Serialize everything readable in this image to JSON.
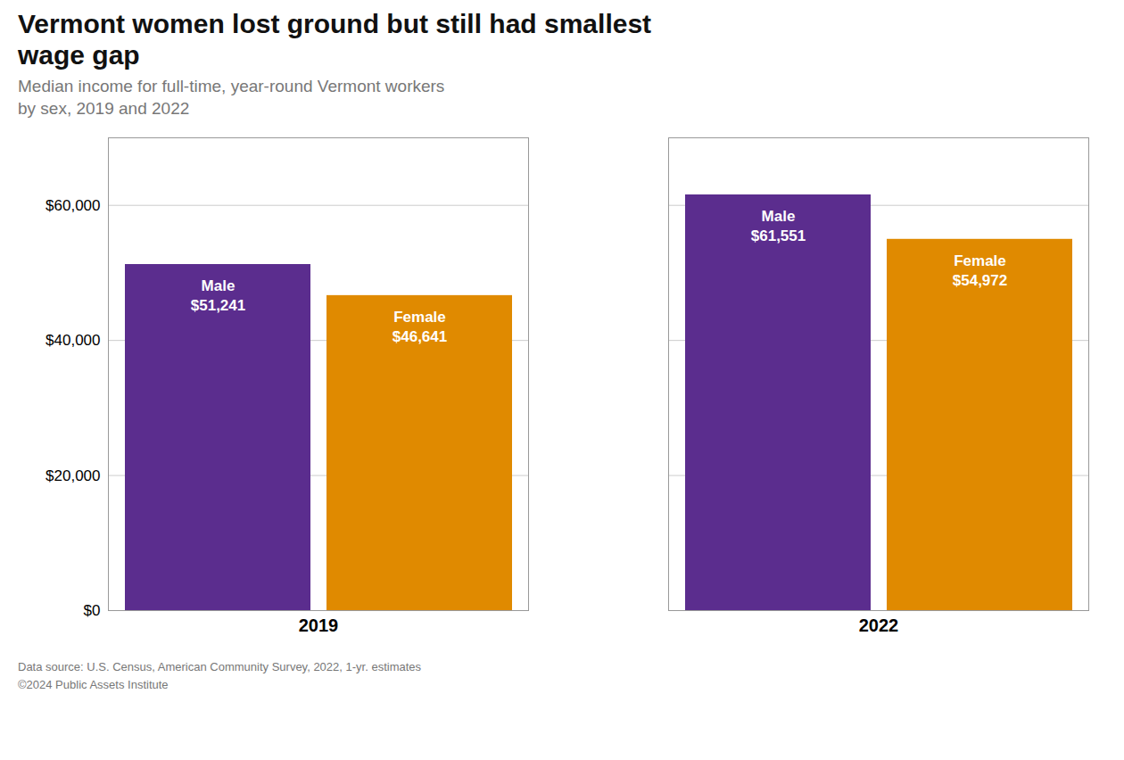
{
  "chart_data": {
    "type": "bar",
    "title": "Vermont women lost ground but still had smallest\nwage gap",
    "subtitle": "Median income for full-time, year-round Vermont workers\nby sex, 2019 and 2022",
    "caption": "Data source: U.S. Census, American Community Survey, 2022, 1-yr. estimates\n©2024 Public Assets Institute",
    "categories": [
      "2019",
      "2022"
    ],
    "series": [
      {
        "name": "Male",
        "color": "#5b2d8e",
        "values": [
          51241,
          61551
        ],
        "value_labels": [
          "Male\n$51,241",
          "Male\n$61,551"
        ]
      },
      {
        "name": "Female",
        "color": "#e08a00",
        "values": [
          46641,
          54972
        ],
        "value_labels": [
          "Female\n$46,641",
          "Female\n$54,972"
        ]
      }
    ],
    "ylim": [
      0,
      70000
    ],
    "yticks": [
      {
        "value": 0,
        "label": "$0"
      },
      {
        "value": 20000,
        "label": "$20,000"
      },
      {
        "value": 40000,
        "label": "$40,000"
      },
      {
        "value": 60000,
        "label": "$60,000"
      }
    ],
    "grid": true,
    "data_labels": true
  }
}
